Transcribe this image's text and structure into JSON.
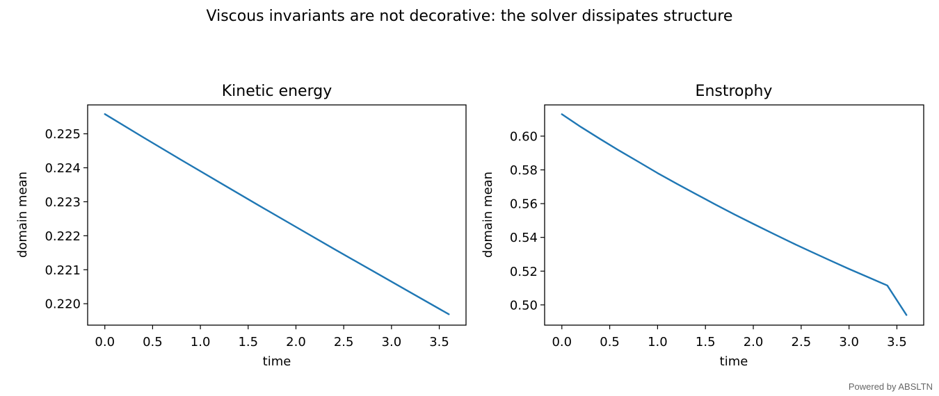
{
  "figure": {
    "suptitle": "Viscous invariants are not decorative: the solver dissipates structure",
    "watermark": "Powered by ABSLTN"
  },
  "colors": {
    "series": "#1f77b4"
  },
  "chart_data": [
    {
      "type": "line",
      "title": "Kinetic energy",
      "xlabel": "time",
      "ylabel": "domain mean",
      "xlim": [
        -0.18,
        3.78
      ],
      "ylim": [
        0.21937,
        0.22585
      ],
      "xticks": [
        0.0,
        0.5,
        1.0,
        1.5,
        2.0,
        2.5,
        3.0,
        3.5
      ],
      "xtick_labels": [
        "0.0",
        "0.5",
        "1.0",
        "1.5",
        "2.0",
        "2.5",
        "3.0",
        "3.5"
      ],
      "yticks": [
        0.22,
        0.221,
        0.222,
        0.223,
        0.224,
        0.225
      ],
      "ytick_labels": [
        "0.220",
        "0.221",
        "0.222",
        "0.223",
        "0.224",
        "0.225"
      ],
      "grid": false,
      "series": [
        {
          "x": [
            0.0,
            0.4,
            0.8,
            1.2,
            1.6,
            2.0,
            2.4,
            2.8,
            3.2,
            3.6
          ],
          "y": [
            0.22558,
            0.2249,
            0.22423,
            0.22357,
            0.22291,
            0.22226,
            0.22161,
            0.22097,
            0.22033,
            0.21969
          ]
        }
      ]
    },
    {
      "type": "line",
      "title": "Enstrophy",
      "xlabel": "time",
      "ylabel": "domain mean",
      "xlim": [
        -0.18,
        3.78
      ],
      "ylim": [
        0.488,
        0.6185
      ],
      "xticks": [
        0.0,
        0.5,
        1.0,
        1.5,
        2.0,
        2.5,
        3.0,
        3.5
      ],
      "xtick_labels": [
        "0.0",
        "0.5",
        "1.0",
        "1.5",
        "2.0",
        "2.5",
        "3.0",
        "3.5"
      ],
      "yticks": [
        0.5,
        0.52,
        0.54,
        0.56,
        0.58,
        0.6
      ],
      "ytick_labels": [
        "0.50",
        "0.52",
        "0.54",
        "0.56",
        "0.58",
        "0.60"
      ],
      "grid": false,
      "series": [
        {
          "x": [
            0.0,
            0.2,
            0.4,
            0.6,
            0.8,
            1.0,
            1.2,
            1.4,
            1.6,
            1.8,
            2.0,
            2.2,
            2.4,
            2.6,
            2.8,
            3.0,
            3.2,
            3.4,
            3.6
          ],
          "y": [
            0.613,
            0.6054,
            0.5983,
            0.5914,
            0.5848,
            0.5781,
            0.5718,
            0.5657,
            0.5596,
            0.5537,
            0.548,
            0.5424,
            0.5369,
            0.5316,
            0.5264,
            0.5213,
            0.5164,
            0.5115,
            0.494
          ]
        }
      ]
    }
  ]
}
